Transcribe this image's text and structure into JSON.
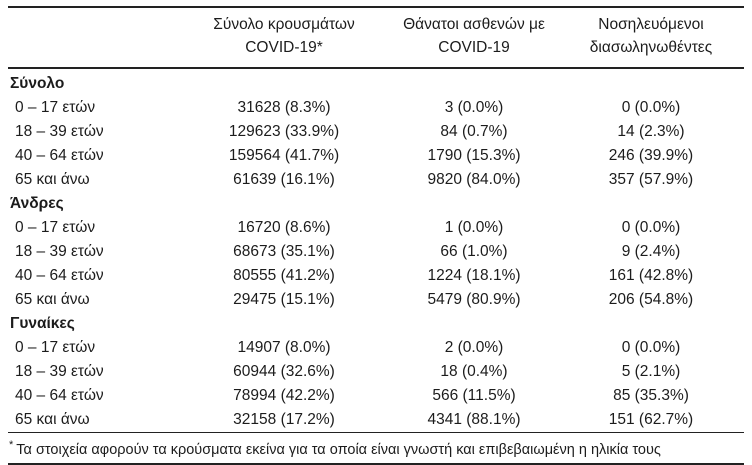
{
  "colors": {
    "background": "#ffffff",
    "text": "#1c1c1c",
    "rule": "#222222"
  },
  "table": {
    "columns": [
      {
        "line1": "Σύνολο κρουσμάτων",
        "line2": "COVID-19*"
      },
      {
        "line1": "Θάνατοι ασθενών με",
        "line2": "COVID-19"
      },
      {
        "line1": "Νοσηλευόμενοι",
        "line2": "διασωληνωθέντες"
      }
    ],
    "groups": [
      {
        "label": "Σύνολο",
        "rows": [
          {
            "label": "0 – 17 ετών",
            "cases": "31628 (8.3%)",
            "deaths": "3 (0.0%)",
            "intubated": "0 (0.0%)"
          },
          {
            "label": "18 – 39 ετών",
            "cases": "129623 (33.9%)",
            "deaths": "84 (0.7%)",
            "intubated": "14 (2.3%)"
          },
          {
            "label": "40 – 64 ετών",
            "cases": "159564 (41.7%)",
            "deaths": "1790 (15.3%)",
            "intubated": "246 (39.9%)"
          },
          {
            "label": "65 και άνω",
            "cases": "61639 (16.1%)",
            "deaths": "9820 (84.0%)",
            "intubated": "357 (57.9%)"
          }
        ]
      },
      {
        "label": "Άνδρες",
        "rows": [
          {
            "label": "0 – 17 ετών",
            "cases": "16720 (8.6%)",
            "deaths": "1 (0.0%)",
            "intubated": "0 (0.0%)"
          },
          {
            "label": "18 – 39 ετών",
            "cases": "68673 (35.1%)",
            "deaths": "66 (1.0%)",
            "intubated": "9 (2.4%)"
          },
          {
            "label": "40 – 64 ετών",
            "cases": "80555 (41.2%)",
            "deaths": "1224 (18.1%)",
            "intubated": "161 (42.8%)"
          },
          {
            "label": "65 και άνω",
            "cases": "29475 (15.1%)",
            "deaths": "5479 (80.9%)",
            "intubated": "206 (54.8%)"
          }
        ]
      },
      {
        "label": "Γυναίκες",
        "rows": [
          {
            "label": "0 – 17 ετών",
            "cases": "14907 (8.0%)",
            "deaths": "2 (0.0%)",
            "intubated": "0 (0.0%)"
          },
          {
            "label": "18 – 39 ετών",
            "cases": "60944 (32.6%)",
            "deaths": "18 (0.4%)",
            "intubated": "5 (2.1%)"
          },
          {
            "label": "40 – 64 ετών",
            "cases": "78994 (42.2%)",
            "deaths": "566 (11.5%)",
            "intubated": "85 (35.3%)"
          },
          {
            "label": "65 και άνω",
            "cases": "32158 (17.2%)",
            "deaths": "4341 (88.1%)",
            "intubated": "151 (62.7%)"
          }
        ]
      }
    ],
    "footnote_marker": "*",
    "footnote_text": "Τα στοιχεία αφορούν τα κρούσματα εκείνα για τα οποία είναι γνωστή και επιβεβαιωμένη η ηλικία τους"
  }
}
